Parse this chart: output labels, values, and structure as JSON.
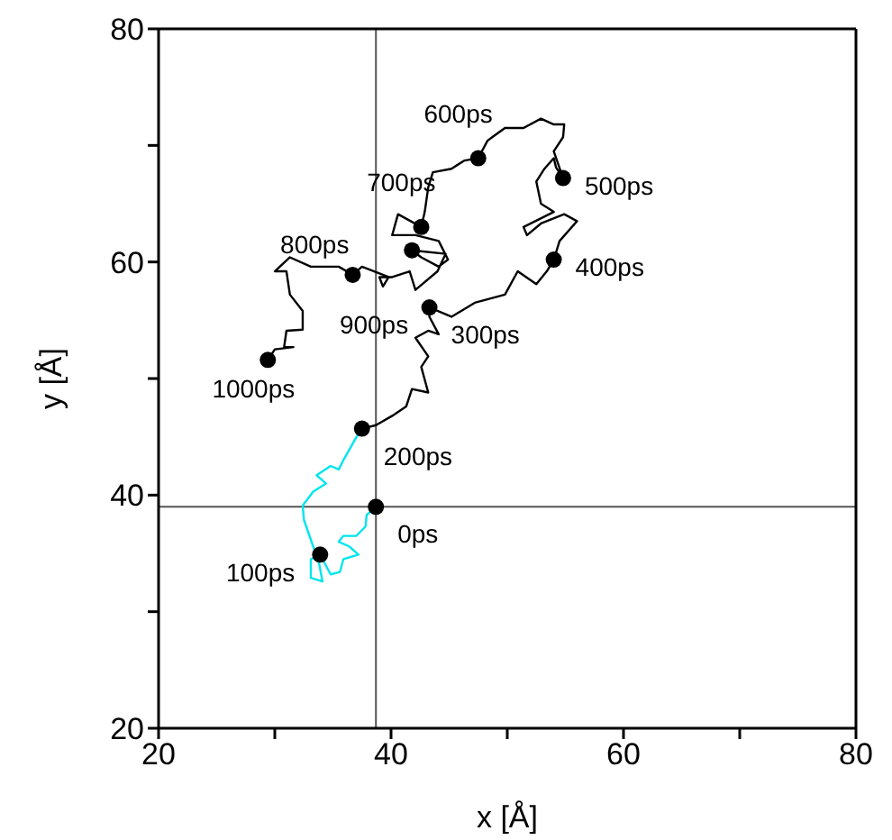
{
  "chart_data": {
    "type": "line",
    "xlabel": "x [Å]",
    "ylabel": "y [Å]",
    "xlim": [
      20,
      80
    ],
    "ylim": [
      20,
      80
    ],
    "xticks": [
      20,
      {
        "value": 30,
        "label": null
      },
      40,
      {
        "value": 50,
        "label": null
      },
      60,
      {
        "value": 70,
        "label": null
      },
      80
    ],
    "yticks": [
      20,
      {
        "value": 30,
        "label": null
      },
      40,
      {
        "value": 50,
        "label": null
      },
      60,
      {
        "value": 70,
        "label": null
      },
      80
    ],
    "line_style": "solid",
    "ref_lines": [
      {
        "axis": "x",
        "value": 38.7,
        "color": "#555555"
      },
      {
        "axis": "y",
        "value": 39.0,
        "color": "#555555"
      }
    ],
    "annotations": [
      {
        "text": "0ps",
        "x": 38.7,
        "y": 39.0
      },
      {
        "text": "100ps",
        "x": 33.9,
        "y": 34.9
      },
      {
        "text": "200ps",
        "x": 37.5,
        "y": 45.7
      },
      {
        "text": "300ps",
        "x": 43.3,
        "y": 56.1
      },
      {
        "text": "400ps",
        "x": 54.0,
        "y": 60.2
      },
      {
        "text": "500ps",
        "x": 54.8,
        "y": 67.2
      },
      {
        "text": "600ps",
        "x": 47.5,
        "y": 68.9
      },
      {
        "text": "700ps",
        "x": 42.6,
        "y": 63.0
      },
      {
        "text": "800ps",
        "x": 36.7,
        "y": 58.9
      },
      {
        "text": "900ps",
        "x": 41.8,
        "y": 61.0
      },
      {
        "text": "1000ps",
        "x": 29.4,
        "y": 51.6
      }
    ],
    "series": [
      {
        "color": "#00e5ee",
        "marker": "none",
        "x": [
          38.7,
          37.9,
          37.8,
          37.0,
          35.9,
          35.5,
          36.4,
          37.2,
          35.9,
          35.6,
          34.8,
          33.9,
          33.1,
          33.1,
          34.1,
          33.8,
          33.3,
          32.5,
          32.4,
          33.3,
          34.4,
          33.6,
          34.8,
          35.5,
          35.9,
          37.2,
          37.5
        ],
        "values": [
          39.0,
          38.3,
          37.3,
          36.5,
          36.5,
          36.0,
          35.6,
          34.9,
          34.5,
          33.4,
          33.2,
          34.9,
          34.5,
          32.9,
          32.6,
          34.2,
          35.6,
          37.9,
          39.1,
          40.3,
          41.0,
          41.7,
          42.5,
          42.2,
          43.0,
          45.3,
          45.7
        ]
      },
      {
        "color": "#000000",
        "marker": "none",
        "x": [
          37.5,
          38.7,
          40.1,
          41.3,
          41.8,
          43.2,
          42.6,
          43.2,
          42.1,
          43.2,
          44.1,
          43.3,
          43.3,
          45.2,
          47.2,
          49.8,
          50.9,
          52.5,
          53.4,
          54.0,
          54.5,
          56.0,
          54.9,
          52.9,
          51.7,
          51.4,
          54.0,
          52.9,
          52.5,
          53.2,
          54.0,
          54.2,
          54.8,
          54.0,
          54.8,
          54.9,
          54.0,
          52.9,
          51.4,
          49.8,
          48.7,
          48.3,
          47.5,
          46.3,
          45.2,
          43.6,
          43.2,
          42.9,
          42.6,
          40.6,
          40.1,
          42.1,
          44.1,
          44.9,
          44.1,
          42.6,
          41.8,
          44.7,
          44.0,
          42.1,
          41.6,
          40.1,
          39.0,
          39.3,
          39.8,
          37.5,
          36.7,
          35.5,
          33.1,
          31.3,
          30.0,
          31.0,
          31.3,
          32.4,
          32.4,
          31.0,
          30.8,
          31.6,
          30.0,
          29.4
        ],
        "values": [
          45.7,
          46.0,
          46.8,
          47.6,
          49.1,
          48.8,
          51.0,
          51.9,
          53.5,
          54.1,
          53.8,
          55.3,
          56.1,
          55.3,
          56.5,
          57.2,
          59.2,
          58.1,
          59.2,
          60.2,
          61.8,
          63.5,
          64.1,
          63.3,
          62.3,
          63.0,
          64.3,
          65.0,
          66.9,
          68.0,
          68.9,
          68.1,
          67.2,
          69.5,
          70.7,
          71.8,
          71.8,
          72.3,
          71.5,
          71.5,
          70.7,
          70.4,
          68.9,
          68.7,
          68.0,
          67.7,
          66.4,
          64.3,
          63.0,
          64.1,
          62.3,
          62.3,
          61.8,
          60.2,
          59.6,
          60.4,
          61.0,
          60.7,
          59.2,
          57.6,
          59.2,
          58.7,
          58.7,
          57.9,
          58.7,
          59.6,
          58.9,
          59.6,
          59.6,
          60.4,
          59.2,
          59.2,
          57.2,
          55.8,
          54.2,
          54.1,
          52.7,
          52.7,
          52.5,
          51.6
        ]
      },
      {
        "type": "scatter",
        "color": "#000000",
        "marker": "circle",
        "x": [
          38.7,
          33.9,
          37.5,
          43.3,
          54.0,
          54.8,
          47.5,
          42.6,
          36.7,
          41.8,
          29.4
        ],
        "values": [
          39.0,
          34.9,
          45.7,
          56.1,
          60.2,
          67.2,
          68.9,
          63.0,
          58.9,
          61.0,
          51.6
        ]
      }
    ]
  }
}
